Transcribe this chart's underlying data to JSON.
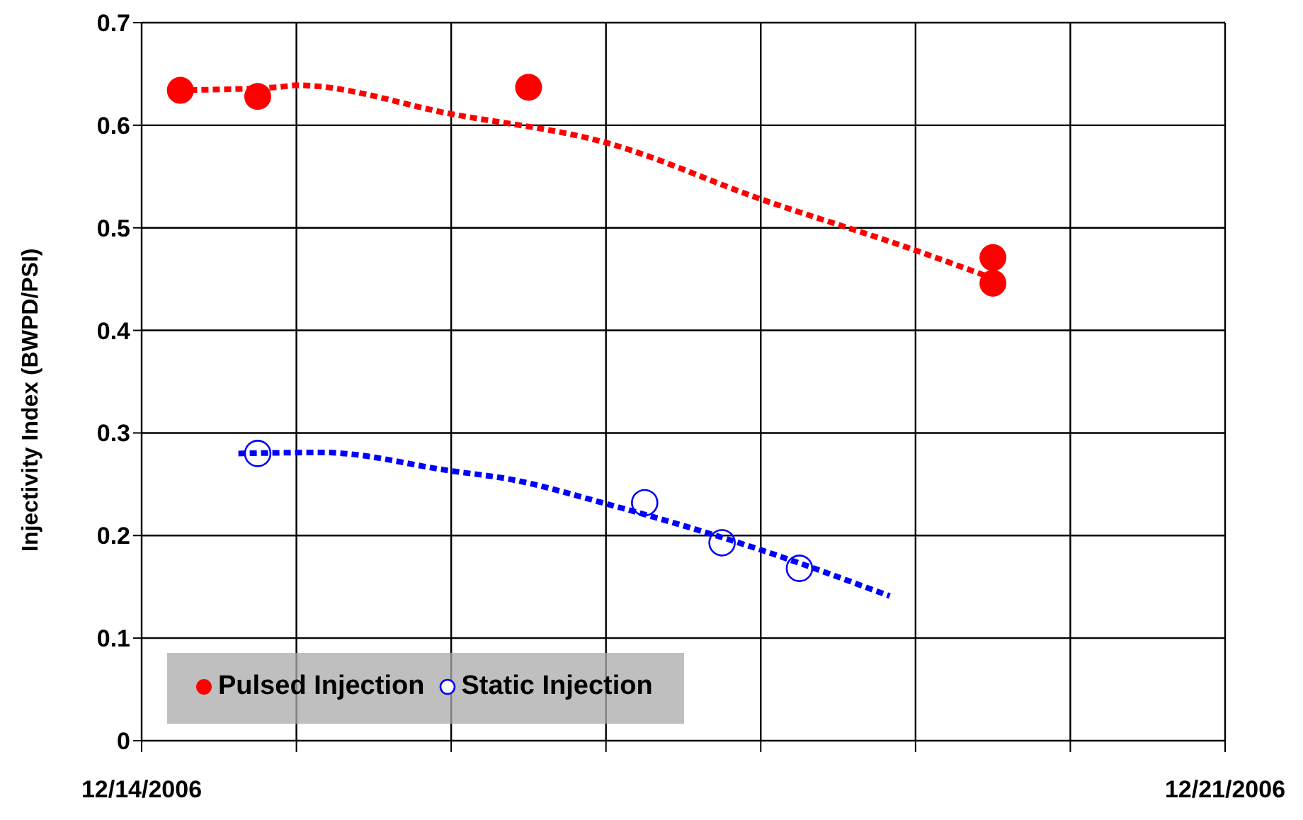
{
  "chart_data": {
    "type": "scatter",
    "ylabel": "Injectivity Index (BWPD/PSI)",
    "xlim": [
      "2006-12-14",
      "2006-12-21"
    ],
    "xticks": [
      {
        "value": "2006-12-14",
        "label": "12/14/2006"
      },
      {
        "value": "2006-12-15",
        "label": null
      },
      {
        "value": "2006-12-16",
        "label": null
      },
      {
        "value": "2006-12-17",
        "label": null
      },
      {
        "value": "2006-12-18",
        "label": null
      },
      {
        "value": "2006-12-19",
        "label": null
      },
      {
        "value": "2006-12-20",
        "label": null
      },
      {
        "value": "2006-12-21",
        "label": "12/21/2006"
      }
    ],
    "ylim": [
      0,
      0.7
    ],
    "yticks": [
      0,
      0.1,
      0.2,
      0.3,
      0.4,
      0.5,
      0.6,
      0.7
    ],
    "grid": true,
    "legend": "bottom left",
    "marker": "circle",
    "series": [
      {
        "type": "line",
        "color": "#ff0000",
        "line_style": "dashed",
        "marker": "none",
        "x": [
          "2006-12-14T04:00",
          "2006-12-14T21:00",
          "2006-12-15",
          "2006-12-16",
          "2006-12-17",
          "2006-12-18",
          "2006-12-19",
          "2006-12-19T11:00"
        ],
        "values": [
          0.634,
          0.637,
          0.639,
          0.611,
          0.583,
          0.528,
          0.478,
          0.453
        ]
      },
      {
        "type": "line",
        "color": "#0000ff",
        "line_style": "dashed",
        "marker": "none",
        "x": [
          "2006-12-14T15:00",
          "2006-12-15T04:00",
          "2006-12-16",
          "2006-12-16T09:00",
          "2006-12-17",
          "2006-12-18",
          "2006-12-18T20:00"
        ],
        "values": [
          0.28,
          0.281,
          0.263,
          0.255,
          0.231,
          0.186,
          0.141
        ]
      },
      {
        "name": "Pulsed Injection",
        "color": "#ff0000",
        "x": [
          "2006-12-14T06:00",
          "2006-12-14T18:00",
          "2006-12-16T12:00",
          "2006-12-19T12:00",
          "2006-12-19T12:00"
        ],
        "values": [
          0.634,
          0.628,
          0.637,
          0.471,
          0.446
        ]
      },
      {
        "name": "Static Injection",
        "color": "#0000ff",
        "x": [
          "2006-12-14T18:00",
          "2006-12-17T06:00",
          "2006-12-17T18:00",
          "2006-12-18T06:00"
        ],
        "values": [
          0.28,
          0.232,
          0.193,
          0.168
        ]
      }
    ]
  }
}
